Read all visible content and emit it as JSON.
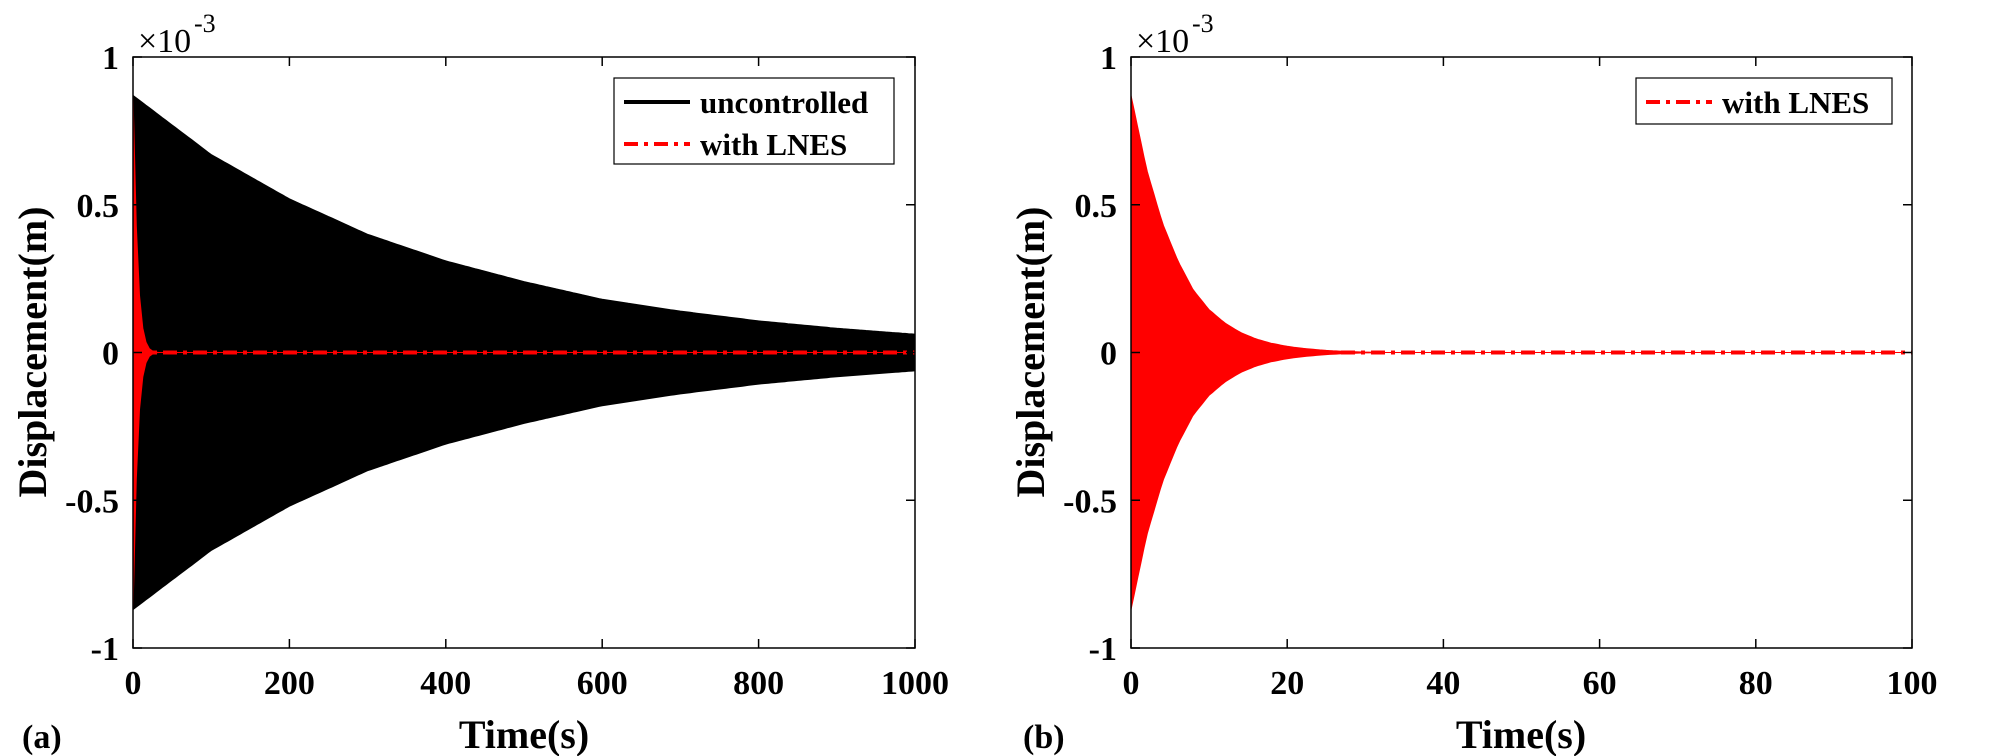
{
  "chart_data": [
    {
      "type": "line",
      "panel_label": "(a)",
      "xlabel": "Time(s)",
      "ylabel": "Displacement(m)",
      "xlim": [
        0,
        1000
      ],
      "ylim": [
        -1,
        1
      ],
      "y_scale_prefix": "×10",
      "y_scale_exponent": "-3",
      "xticks": [
        0,
        200,
        400,
        600,
        800,
        1000
      ],
      "xtick_labels": [
        "0",
        "200",
        "400",
        "600",
        "800",
        "1000"
      ],
      "yticks": [
        -1,
        -0.5,
        0,
        0.5,
        1
      ],
      "ytick_labels": [
        "-1",
        "-0.5",
        "0",
        "0.5",
        "1"
      ],
      "legend_position": "top-right",
      "series": [
        {
          "name": "uncontrolled",
          "color": "#000000",
          "style": "solid",
          "envelope": {
            "x": [
              0,
              100,
              200,
              300,
              400,
              500,
              600,
              700,
              800,
              900,
              1000
            ],
            "upper": [
              0.87,
              0.67,
              0.52,
              0.4,
              0.31,
              0.24,
              0.18,
              0.14,
              0.107,
              0.082,
              0.062
            ]
          }
        },
        {
          "name": "with LNES",
          "color": "#ff0000",
          "style": "dash-dot",
          "envelope": {
            "x": [
              0,
              5,
              10,
              15,
              20,
              25,
              30,
              1000
            ],
            "upper": [
              0.87,
              0.34,
              0.12,
              0.045,
              0.015,
              0.005,
              0.0,
              0.0
            ]
          }
        }
      ]
    },
    {
      "type": "line",
      "panel_label": "(b)",
      "xlabel": "Time(s)",
      "ylabel": "Displacement(m)",
      "xlim": [
        0,
        100
      ],
      "ylim": [
        -1,
        1
      ],
      "y_scale_prefix": "×10",
      "y_scale_exponent": "-3",
      "xticks": [
        0,
        20,
        40,
        60,
        80,
        100
      ],
      "xtick_labels": [
        "0",
        "20",
        "40",
        "60",
        "80",
        "100"
      ],
      "yticks": [
        -1,
        -0.5,
        0,
        0.5,
        1
      ],
      "ytick_labels": [
        "-1",
        "-0.5",
        "0",
        "0.5",
        "1"
      ],
      "legend_position": "top-right",
      "series": [
        {
          "name": "with LNES",
          "color": "#ff0000",
          "style": "dash-dot",
          "envelope": {
            "x": [
              0,
              2,
              4,
              6,
              8,
              10,
              12,
              14,
              16,
              18,
              20,
              22,
              25,
              28,
              32,
              100
            ],
            "upper": [
              0.87,
              0.62,
              0.44,
              0.31,
              0.21,
              0.145,
              0.1,
              0.068,
              0.046,
              0.031,
              0.021,
              0.014,
              0.007,
              0.003,
              0.0,
              0.0
            ]
          }
        }
      ]
    }
  ]
}
